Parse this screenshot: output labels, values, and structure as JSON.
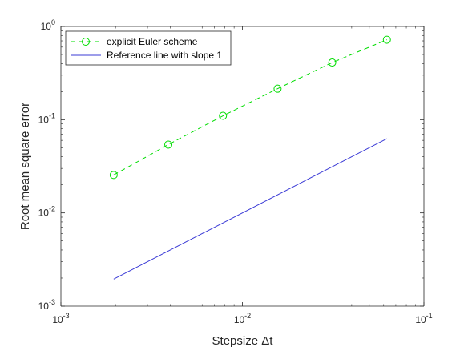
{
  "chart_data": {
    "type": "line",
    "xscale": "log",
    "yscale": "log",
    "xlim": [
      0.001,
      0.1
    ],
    "ylim": [
      0.001,
      1
    ],
    "xlabel": "Stepsize Δt",
    "ylabel": "Root mean square error",
    "xticks": [
      {
        "value": 0.001,
        "base": "10",
        "exp": "-3"
      },
      {
        "value": 0.01,
        "base": "10",
        "exp": "-2"
      },
      {
        "value": 0.1,
        "base": "10",
        "exp": "-1"
      }
    ],
    "yticks": [
      {
        "value": 0.001,
        "base": "10",
        "exp": "-3"
      },
      {
        "value": 0.01,
        "base": "10",
        "exp": "-2"
      },
      {
        "value": 0.1,
        "base": "10",
        "exp": "-1"
      },
      {
        "value": 1,
        "base": "10",
        "exp": "0"
      }
    ],
    "legend_position": "top-left",
    "grid": false,
    "series": [
      {
        "name": "explicit Euler scheme",
        "color": "#00dd00",
        "line_style": "dashed",
        "marker": "circle",
        "x": [
          0.001953125,
          0.00390625,
          0.0078125,
          0.015625,
          0.03125,
          0.0625
        ],
        "y": [
          0.0255,
          0.054,
          0.11,
          0.215,
          0.41,
          0.72
        ]
      },
      {
        "name": "Reference line with slope 1",
        "color": "#3b3bd6",
        "line_style": "solid",
        "marker": "none",
        "x": [
          0.001953125,
          0.0625
        ],
        "y": [
          0.00195,
          0.0625
        ]
      }
    ]
  }
}
